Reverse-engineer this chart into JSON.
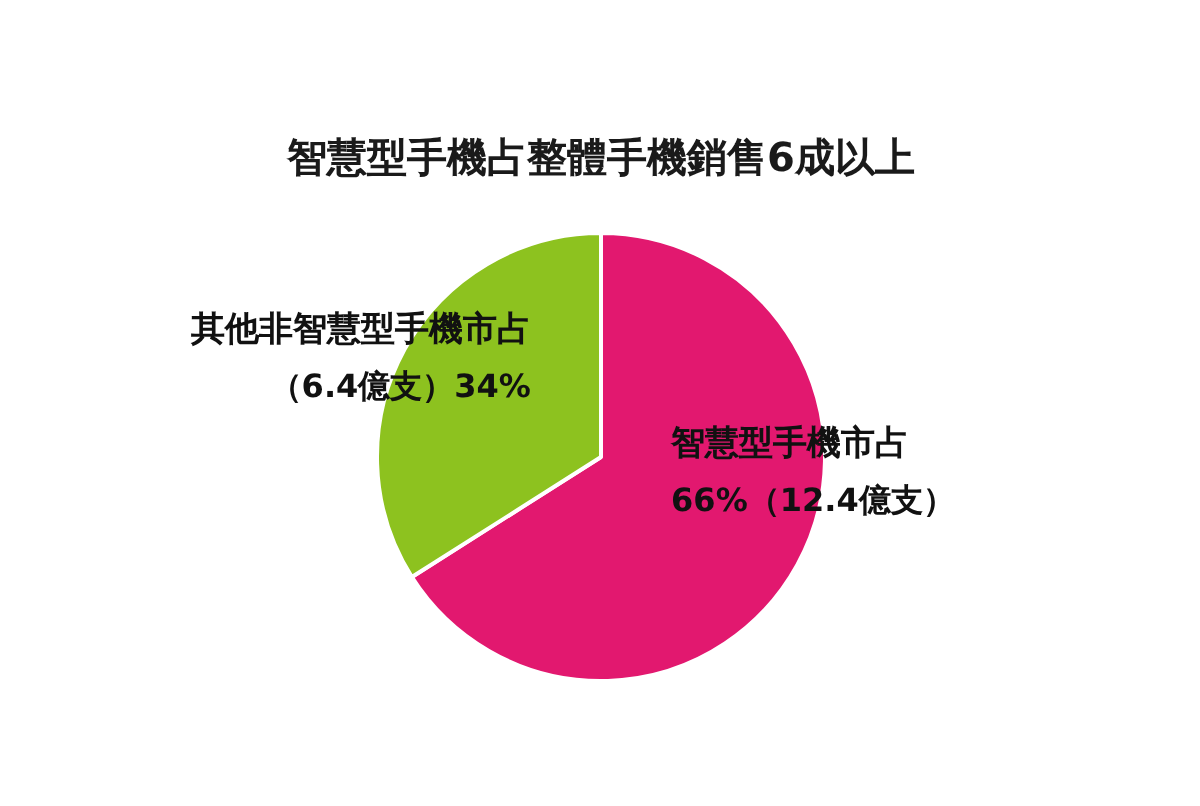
{
  "chart_data": {
    "type": "pie",
    "title": "智慧型手機占整體手機銷售6成以上",
    "categories": [
      "智慧型手機市占",
      "其他非智慧型手機市占"
    ],
    "values": [
      66,
      34
    ],
    "colors": [
      "#e2186f",
      "#8dc21f"
    ],
    "value_labels": [
      "66%（12.4億支）",
      "（6.4億支）34%"
    ]
  }
}
